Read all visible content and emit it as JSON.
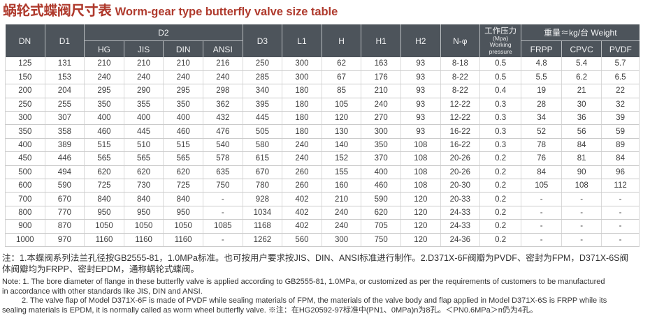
{
  "title": {
    "cn": "蜗轮式蝶阀尺寸表",
    "en": "Worm-gear type butterfly valve size table"
  },
  "table": {
    "header": {
      "dn": "DN",
      "d1": "D1",
      "d2": {
        "label": "D2",
        "subs": [
          "HG",
          "JIS",
          "DIN",
          "ANSI"
        ]
      },
      "d3": "D3",
      "l1": "L1",
      "h": "H",
      "h1": "H1",
      "h2": "H2",
      "n_phi": "N-φ",
      "pressure": {
        "cn": "工作压力",
        "unit": "(Mpa)",
        "en1": "Working",
        "en2": "pressure"
      },
      "weight": {
        "label": "重量≈kg/台 Weight",
        "subs": [
          "FRPP",
          "CPVC",
          "PVDF"
        ]
      }
    },
    "rows": [
      [
        "125",
        "131",
        "210",
        "210",
        "210",
        "216",
        "250",
        "300",
        "62",
        "163",
        "93",
        "8-18",
        "0.5",
        "4.8",
        "5.4",
        "5.7"
      ],
      [
        "150",
        "153",
        "240",
        "240",
        "240",
        "240",
        "285",
        "300",
        "67",
        "176",
        "93",
        "8-22",
        "0.5",
        "5.5",
        "6.2",
        "6.5"
      ],
      [
        "200",
        "204",
        "295",
        "290",
        "295",
        "298",
        "340",
        "180",
        "85",
        "210",
        "93",
        "8-22",
        "0.4",
        "19",
        "21",
        "22"
      ],
      [
        "250",
        "255",
        "350",
        "355",
        "350",
        "362",
        "395",
        "180",
        "105",
        "240",
        "93",
        "12-22",
        "0.3",
        "28",
        "30",
        "32"
      ],
      [
        "300",
        "307",
        "400",
        "400",
        "400",
        "432",
        "445",
        "180",
        "120",
        "270",
        "93",
        "12-22",
        "0.3",
        "34",
        "36",
        "39"
      ],
      [
        "350",
        "358",
        "460",
        "445",
        "460",
        "476",
        "505",
        "180",
        "130",
        "300",
        "93",
        "16-22",
        "0.3",
        "52",
        "56",
        "59"
      ],
      [
        "400",
        "389",
        "515",
        "510",
        "515",
        "540",
        "580",
        "240",
        "140",
        "350",
        "108",
        "16-22",
        "0.3",
        "78",
        "84",
        "89"
      ],
      [
        "450",
        "446",
        "565",
        "565",
        "565",
        "578",
        "615",
        "240",
        "152",
        "370",
        "108",
        "20-26",
        "0.2",
        "76",
        "81",
        "84"
      ],
      [
        "500",
        "494",
        "620",
        "620",
        "620",
        "635",
        "670",
        "260",
        "155",
        "400",
        "108",
        "20-26",
        "0.2",
        "84",
        "90",
        "96"
      ],
      [
        "600",
        "590",
        "725",
        "730",
        "725",
        "750",
        "780",
        "260",
        "160",
        "460",
        "108",
        "20-30",
        "0.2",
        "105",
        "108",
        "112"
      ],
      [
        "700",
        "670",
        "840",
        "840",
        "840",
        "-",
        "928",
        "402",
        "210",
        "590",
        "120",
        "20-33",
        "0.2",
        "-",
        "-",
        "-"
      ],
      [
        "800",
        "770",
        "950",
        "950",
        "950",
        "-",
        "1034",
        "402",
        "240",
        "620",
        "120",
        "24-33",
        "0.2",
        "-",
        "-",
        "-"
      ],
      [
        "900",
        "870",
        "1050",
        "1050",
        "1050",
        "1085",
        "1168",
        "402",
        "240",
        "705",
        "120",
        "24-33",
        "0.2",
        "-",
        "-",
        "-"
      ],
      [
        "1000",
        "970",
        "1160",
        "1160",
        "1160",
        "-",
        "1262",
        "560",
        "300",
        "750",
        "120",
        "24-36",
        "0.2",
        "-",
        "-",
        "-"
      ]
    ]
  },
  "notes": {
    "lines": [
      "注：1.本蝶阀系列法兰孔径按GB2555-81，1.0MPa标准。也可按用户要求按JIS、DIN、ANSI标准进行制作。2.D371X-6F阀瓣为PVDF、密封为FPM，D371X-6S阀",
      "体阀瓣均为FRPP、密封EPDM，通称蜗轮式蝶阀。",
      "Note: 1. The bore diameter of flange in these butterfly valve is applied according to GB2555-81, 1.0MPa, or customized as per the requirements of customers to be manufactured",
      "in accordance with other standards like JIS, DIN and ANSI.",
      "2. The valve flap of Model D371X-6F is made of PVDF while sealing materials of FPM, the materials of the valve body and flap applied in Model D371X-6S is FRPP while its",
      "sealing materials is EPDM, it is normally called as worm wheel butterfly valve. ※注：在HG20592-97标准中(PN1、0MPa)n为8孔。＜PN0.6MPa＞n仍为4孔。"
    ]
  },
  "colors": {
    "title_red": "#af3a2d",
    "header_bg": "#4d545b",
    "header_text": "#f2f3f4",
    "grid_line": "#cbcbcb",
    "body_text": "#3d3d3d"
  }
}
